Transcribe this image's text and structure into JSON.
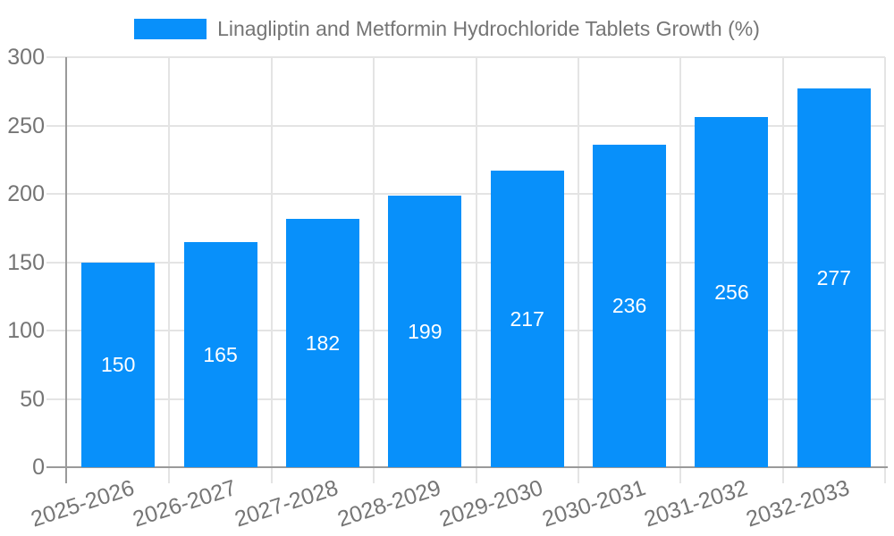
{
  "chart_data": {
    "type": "bar",
    "title": "",
    "series_name": "Linagliptin and Metformin Hydrochloride Tablets Growth (%)",
    "categories": [
      "2025-2026",
      "2026-2027",
      "2027-2028",
      "2028-2029",
      "2029-2030",
      "2030-2031",
      "2031-2032",
      "2032-2033"
    ],
    "values": [
      150,
      165,
      182,
      199,
      217,
      236,
      256,
      277
    ],
    "value_labels": [
      "150",
      "165",
      "182",
      "199",
      "217",
      "236",
      "256",
      "277"
    ],
    "xlabel": "",
    "ylabel": "",
    "ylim": [
      0,
      300
    ],
    "ytick_step": 50,
    "yticks": [
      0,
      50,
      100,
      150,
      200,
      250,
      300
    ],
    "grid": "on",
    "legend_position": "top-center",
    "colors": {
      "bar": "#0890fa",
      "value_label": "#ffffff",
      "axis": "#9a9a9a",
      "gridline": "#e4e4e4",
      "tick_label": "#757575",
      "legend_text": "#757575",
      "background": "#ffffff"
    }
  }
}
